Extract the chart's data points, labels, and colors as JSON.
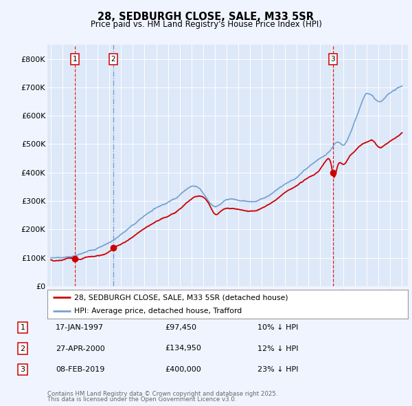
{
  "title": "28, SEDBURGH CLOSE, SALE, M33 5SR",
  "subtitle": "Price paid vs. HM Land Registry's House Price Index (HPI)",
  "legend_line1": "28, SEDBURGH CLOSE, SALE, M33 5SR (detached house)",
  "legend_line2": "HPI: Average price, detached house, Trafford",
  "transactions": [
    {
      "num": 1,
      "date": "17-JAN-1997",
      "price": "£97,450",
      "pct": "10% ↓ HPI",
      "year": 1997.04,
      "price_val": 97450
    },
    {
      "num": 2,
      "date": "27-APR-2000",
      "price": "£134,950",
      "pct": "12% ↓ HPI",
      "year": 2000.32,
      "price_val": 134950
    },
    {
      "num": 3,
      "date": "08-FEB-2019",
      "price": "£400,000",
      "pct": "23% ↓ HPI",
      "year": 2019.1,
      "price_val": 400000
    }
  ],
  "trans_line_colors": [
    "#cc0000",
    "#6688cc",
    "#cc0000"
  ],
  "trans_line_styles": [
    "--",
    "-.",
    "--"
  ],
  "footnote1": "Contains HM Land Registry data © Crown copyright and database right 2025.",
  "footnote2": "This data is licensed under the Open Government Licence v3.0.",
  "bg_color": "#f0f4ff",
  "plot_bg_color": "#dde8f8",
  "red_line_color": "#cc0000",
  "blue_line_color": "#6699cc",
  "grid_color": "#ffffff",
  "ylim": [
    0,
    850000
  ],
  "xlim_start": 1994.7,
  "xlim_end": 2025.5,
  "yticks": [
    0,
    100000,
    200000,
    300000,
    400000,
    500000,
    600000,
    700000,
    800000
  ],
  "ytick_labels": [
    "£0",
    "£100K",
    "£200K",
    "£300K",
    "£400K",
    "£500K",
    "£600K",
    "£700K",
    "£800K"
  ],
  "xticks": [
    1995,
    1996,
    1997,
    1998,
    1999,
    2000,
    2001,
    2002,
    2003,
    2004,
    2005,
    2006,
    2007,
    2008,
    2009,
    2010,
    2011,
    2012,
    2013,
    2014,
    2015,
    2016,
    2017,
    2018,
    2019,
    2020,
    2021,
    2022,
    2023,
    2024,
    2025
  ]
}
